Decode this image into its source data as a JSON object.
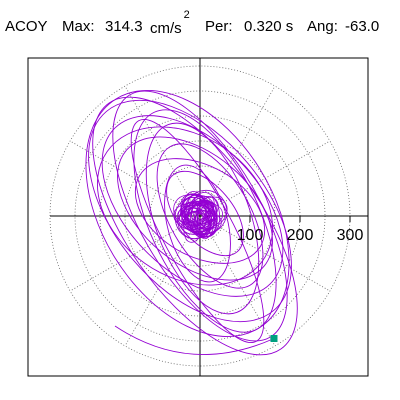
{
  "header": {
    "component": "ACOY",
    "max_label": "Max:",
    "max_value": "314.3",
    "max_unit": "cm/s",
    "max_exponent": "2",
    "period_label": "Per:",
    "period_value": "0.320 s",
    "angle_label": "Ang:",
    "angle_value": "-63.0"
  },
  "chart_data": {
    "type": "line",
    "title": "",
    "xlabel": "",
    "ylabel": "",
    "polar_rings": [
      50,
      100,
      150,
      200,
      250,
      300
    ],
    "radial_spokes_deg": [
      0,
      30,
      60,
      90,
      120,
      150,
      180,
      210,
      240,
      270,
      300,
      330
    ],
    "tick_labels": [
      "100",
      "200",
      "300"
    ],
    "tick_values": [
      100,
      200,
      300
    ],
    "xlim": [
      -300,
      330
    ],
    "ylim": [
      -320,
      320
    ],
    "grid": true,
    "trace_color": "#9400d3",
    "end_marker_color": "#00a080",
    "end_point": [
      148,
      -245
    ],
    "orbit_loops": [
      {
        "a": 300,
        "b": 135,
        "angle_deg": -55,
        "cx": -10,
        "cy": -20
      },
      {
        "a": 280,
        "b": 120,
        "angle_deg": -60,
        "cx": 0,
        "cy": 0
      },
      {
        "a": 260,
        "b": 150,
        "angle_deg": -50,
        "cx": -20,
        "cy": 10
      },
      {
        "a": 240,
        "b": 110,
        "angle_deg": -65,
        "cx": 10,
        "cy": -10
      },
      {
        "a": 220,
        "b": 130,
        "angle_deg": -45,
        "cx": -15,
        "cy": 20
      },
      {
        "a": 200,
        "b": 95,
        "angle_deg": -70,
        "cx": 5,
        "cy": -5
      },
      {
        "a": 180,
        "b": 110,
        "angle_deg": -40,
        "cx": -10,
        "cy": 15
      },
      {
        "a": 160,
        "b": 80,
        "angle_deg": -60,
        "cx": 20,
        "cy": 0
      },
      {
        "a": 140,
        "b": 90,
        "angle_deg": -30,
        "cx": 0,
        "cy": 10
      },
      {
        "a": 120,
        "b": 60,
        "angle_deg": -75,
        "cx": -5,
        "cy": -15
      },
      {
        "a": 100,
        "b": 55,
        "angle_deg": -50,
        "cx": 10,
        "cy": 5
      },
      {
        "a": 250,
        "b": 70,
        "angle_deg": -62,
        "cx": -5,
        "cy": -30
      },
      {
        "a": 270,
        "b": 170,
        "angle_deg": -58,
        "cx": -25,
        "cy": 5
      },
      {
        "a": 190,
        "b": 140,
        "angle_deg": -35,
        "cx": -30,
        "cy": 20
      }
    ],
    "core_cluster": {
      "radius": 45,
      "count": 40,
      "seed": 7
    }
  }
}
